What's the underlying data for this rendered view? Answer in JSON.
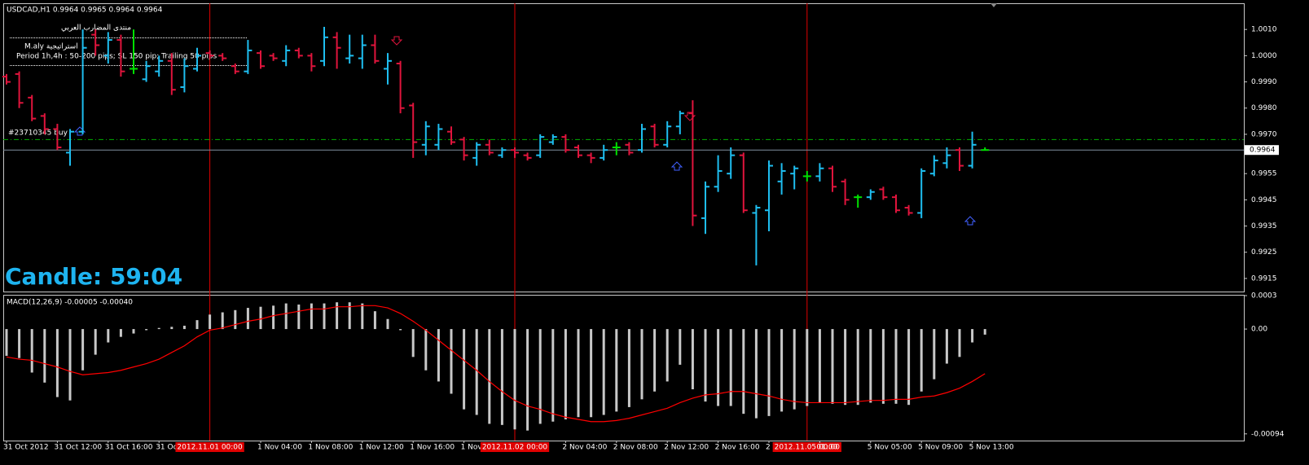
{
  "chart_data": [
    {
      "type": "ohlc",
      "title": "USDCAD,H1  0.9964 0.9965 0.9964 0.9964",
      "categories": [
        "31 Oct 2012",
        null,
        null,
        null,
        "31 Oct 12:00",
        null,
        null,
        null,
        "31 Oct 16:00",
        null,
        null,
        null,
        "31 Oc",
        null,
        null,
        null,
        "2012.11.01 00:00",
        null,
        null,
        null,
        "1 Nov 04:00",
        null,
        null,
        null,
        "1 Nov 08:00",
        null,
        null,
        null,
        "1 Nov 12:00",
        null,
        null,
        null,
        "1 Nov 16:00",
        null,
        null,
        null,
        "1 Nov",
        null,
        null,
        null,
        "2012.11.02 00:00",
        null,
        null,
        null,
        "2 Nov 04:00",
        null,
        null,
        null,
        "2 Nov 08:00",
        null,
        null,
        null,
        "2 Nov 12:00",
        null,
        null,
        null,
        "2 Nov 16:00",
        null,
        null,
        null,
        "2",
        null,
        null,
        "2012.11.05 00:00",
        "01:00",
        null,
        null,
        null,
        "5 Nov 05:00",
        null,
        null,
        null,
        "5 Nov 09:00",
        null,
        null,
        null,
        "5 Nov 13:00",
        null
      ],
      "open": [
        0.9992,
        0.9993,
        0.9984,
        0.9977,
        0.9972,
        0.9963,
        0.9971,
        1.0008,
        1.0,
        1.0006,
        0.9995,
        0.9991,
        0.9994,
        0.9998,
        0.9988,
        0.9995,
        1.0001,
        1.0,
        0.9996,
        0.9994,
        1.0001,
        1.0,
        0.9998,
        1.0002,
        1.0,
        0.9998,
        1.0007,
        0.9999,
        0.9999,
        1.0004,
        0.9995,
        0.9997,
        0.9981,
        0.9966,
        0.9966,
        0.9971,
        0.9968,
        0.9961,
        0.9966,
        0.9962,
        0.9964,
        0.9962,
        0.9962,
        0.9967,
        0.9969,
        0.9965,
        0.9962,
        0.9961,
        0.9965,
        0.9966,
        0.9964,
        0.9973,
        0.9966,
        0.9973,
        0.9978,
        0.9938,
        0.995,
        0.9955,
        0.9962,
        0.994,
        0.9941,
        0.9952,
        0.9955,
        0.9954,
        0.9954,
        0.9957,
        0.9952,
        0.9946,
        0.9946,
        0.9949,
        0.9946,
        0.9942,
        0.994,
        0.9955,
        0.9959,
        0.9964,
        0.9958,
        0.9964
      ],
      "high": [
        0.9993,
        0.9994,
        0.9985,
        0.9978,
        0.9974,
        0.9972,
        1.001,
        1.001,
        1.0009,
        1.0008,
        1.001,
        0.9998,
        1.0,
        1.0001,
        0.9999,
        1.0003,
        1.0002,
        1.0001,
        0.9997,
        1.0006,
        1.0002,
        1.0001,
        1.0004,
        1.0003,
        1.0001,
        1.0011,
        1.0009,
        1.0008,
        1.0008,
        1.0008,
        1.0001,
        0.9998,
        0.9982,
        0.9975,
        0.9974,
        0.9973,
        0.9969,
        0.9967,
        0.9968,
        0.9965,
        0.9965,
        0.9963,
        0.997,
        0.997,
        0.997,
        0.9966,
        0.9963,
        0.9966,
        0.9967,
        0.9967,
        0.9974,
        0.9974,
        0.9975,
        0.9979,
        0.9983,
        0.9952,
        0.9962,
        0.9965,
        0.9963,
        0.9943,
        0.996,
        0.9959,
        0.9958,
        0.9956,
        0.9959,
        0.9958,
        0.9953,
        0.9947,
        0.9949,
        0.995,
        0.9947,
        0.9943,
        0.9957,
        0.9962,
        0.9965,
        0.9965,
        0.9971,
        0.9965
      ],
      "low": [
        0.9989,
        0.998,
        0.9975,
        0.997,
        0.9964,
        0.9958,
        0.997,
        1.0,
        0.9997,
        0.9992,
        0.9993,
        0.999,
        0.9992,
        0.9985,
        0.9986,
        0.9994,
        0.9999,
        0.9998,
        0.9993,
        0.9993,
        0.9995,
        0.9998,
        0.9996,
        0.9999,
        0.9994,
        0.9996,
        0.9995,
        0.9997,
        0.9995,
        0.9997,
        0.9989,
        0.9978,
        0.9961,
        0.9962,
        0.9964,
        0.9966,
        0.996,
        0.9958,
        0.9962,
        0.9961,
        0.9961,
        0.996,
        0.9961,
        0.9966,
        0.9963,
        0.9961,
        0.9959,
        0.996,
        0.9962,
        0.9962,
        0.9963,
        0.9965,
        0.9965,
        0.997,
        0.9935,
        0.9932,
        0.9948,
        0.9953,
        0.994,
        0.992,
        0.9933,
        0.9947,
        0.9949,
        0.9952,
        0.9952,
        0.9948,
        0.9943,
        0.9942,
        0.9945,
        0.9945,
        0.994,
        0.9939,
        0.9938,
        0.9954,
        0.9957,
        0.9956,
        0.9957,
        0.9964
      ],
      "close": [
        0.999,
        0.9982,
        0.9976,
        0.9972,
        0.9965,
        0.9971,
        1.0003,
        1.0004,
        1.0006,
        0.9994,
        0.9995,
        0.9996,
        0.9998,
        0.9987,
        0.9996,
        1.0,
        1.0,
        0.9999,
        0.9994,
        1.0002,
        0.9996,
        0.9999,
        1.0002,
        1.0,
        0.9996,
        1.0007,
        1.0003,
        1.0,
        1.0004,
        0.9998,
        0.9998,
        0.998,
        0.9967,
        0.9973,
        0.9972,
        0.9967,
        0.9962,
        0.9966,
        0.9963,
        0.9964,
        0.9963,
        0.9961,
        0.9969,
        0.9969,
        0.9964,
        0.9962,
        0.9961,
        0.9964,
        0.9965,
        0.9963,
        0.9972,
        0.9966,
        0.9973,
        0.9978,
        0.9939,
        0.995,
        0.9956,
        0.9962,
        0.9941,
        0.9942,
        0.9958,
        0.9956,
        0.9957,
        0.9954,
        0.9957,
        0.995,
        0.9945,
        0.9946,
        0.9948,
        0.9946,
        0.9941,
        0.994,
        0.9956,
        0.996,
        0.9962,
        0.9958,
        0.9966,
        0.9964
      ],
      "colors": {
        "up": "#1ebef0",
        "down": "#e0143c",
        "flat": "#00e000",
        "separator": "#e00000"
      },
      "ylim": [
        0.991,
        1.002
      ],
      "yticks": [
        {
          "value": 1.001,
          "label": "1.0010"
        },
        {
          "value": 1,
          "label": "1.0000"
        },
        {
          "value": 0.999,
          "label": "0.9990"
        },
        {
          "value": 0.998,
          "label": "0.9980"
        },
        {
          "value": 0.997,
          "label": "0.9970"
        },
        0.9955,
        0.9945,
        0.9935,
        0.9925,
        0.9915
      ],
      "current_price": 0.9964,
      "order_line": 0.9968,
      "annotations": {
        "forum": "منتدى المضارب العربي",
        "strategy": "M.aly استراتيجية",
        "period": "Period 1h,4h  : 50-200 pips; SL 150 pip; Trailing 50 pips",
        "order": "#23710345 buy",
        "candle_timer": "Candle:  59:04"
      }
    },
    {
      "type": "macd",
      "title": "MACD(12,26,9) -0.00005 -0.00040",
      "histogram": [
        -0.00024,
        -0.00026,
        -0.00039,
        -0.00048,
        -0.00061,
        -0.00064,
        -0.00037,
        -0.00023,
        -0.00012,
        -7e-05,
        -4e-05,
        -1e-05,
        1e-05,
        2e-05,
        3e-05,
        8e-05,
        0.00013,
        0.00015,
        0.00017,
        0.00019,
        0.0002,
        0.00021,
        0.00023,
        0.00022,
        0.00023,
        0.00023,
        0.00024,
        0.00024,
        0.00023,
        0.00016,
        9e-05,
        -1e-05,
        -0.00025,
        -0.00037,
        -0.00047,
        -0.00058,
        -0.00072,
        -0.00077,
        -0.00085,
        -0.00086,
        -0.0009,
        -0.00091,
        -0.00085,
        -0.00083,
        -0.00081,
        -0.00079,
        -0.00079,
        -0.00077,
        -0.00074,
        -0.0007,
        -0.00063,
        -0.00056,
        -0.00047,
        -0.00032,
        -0.00054,
        -0.00065,
        -0.00069,
        -0.00069,
        -0.00076,
        -0.0008,
        -0.00078,
        -0.00074,
        -0.00072,
        -0.00069,
        -0.00066,
        -0.00067,
        -0.00068,
        -0.00068,
        -0.00066,
        -0.00067,
        -0.00067,
        -0.00068,
        -0.00056,
        -0.00045,
        -0.00031,
        -0.00025,
        -0.00012,
        -5e-05
      ],
      "signal": [
        -0.00025,
        -0.00027,
        -0.00028,
        -0.00031,
        -0.00034,
        -0.00038,
        -0.00041,
        -0.0004,
        -0.00039,
        -0.00037,
        -0.00034,
        -0.00031,
        -0.00027,
        -0.00021,
        -0.00015,
        -7e-05,
        -1e-05,
        1e-05,
        4e-05,
        7e-05,
        9e-05,
        0.00012,
        0.00014,
        0.00016,
        0.00018,
        0.00018,
        0.0002,
        0.0002,
        0.00021,
        0.00021,
        0.00019,
        0.00014,
        7e-05,
        -1e-05,
        -0.0001,
        -0.00019,
        -0.00028,
        -0.00037,
        -0.00047,
        -0.00056,
        -0.00064,
        -0.00069,
        -0.00072,
        -0.00076,
        -0.00079,
        -0.00081,
        -0.00083,
        -0.00083,
        -0.00082,
        -0.0008,
        -0.00077,
        -0.00074,
        -0.00071,
        -0.00066,
        -0.00062,
        -0.00059,
        -0.00058,
        -0.00056,
        -0.00056,
        -0.00058,
        -0.0006,
        -0.00063,
        -0.00065,
        -0.00066,
        -0.00066,
        -0.00066,
        -0.00066,
        -0.00065,
        -0.00064,
        -0.00064,
        -0.00063,
        -0.00063,
        -0.00061,
        -0.0006,
        -0.00057,
        -0.00053,
        -0.00047,
        -0.0004
      ],
      "colors": {
        "histogram": "#c8c8c8",
        "signal": "#ff0000"
      },
      "ylim": [
        -0.001,
        0.0003
      ],
      "yticks": [
        0.0003,
        {
          "value": 0,
          "label": "0.00"
        },
        -0.00094
      ]
    }
  ]
}
